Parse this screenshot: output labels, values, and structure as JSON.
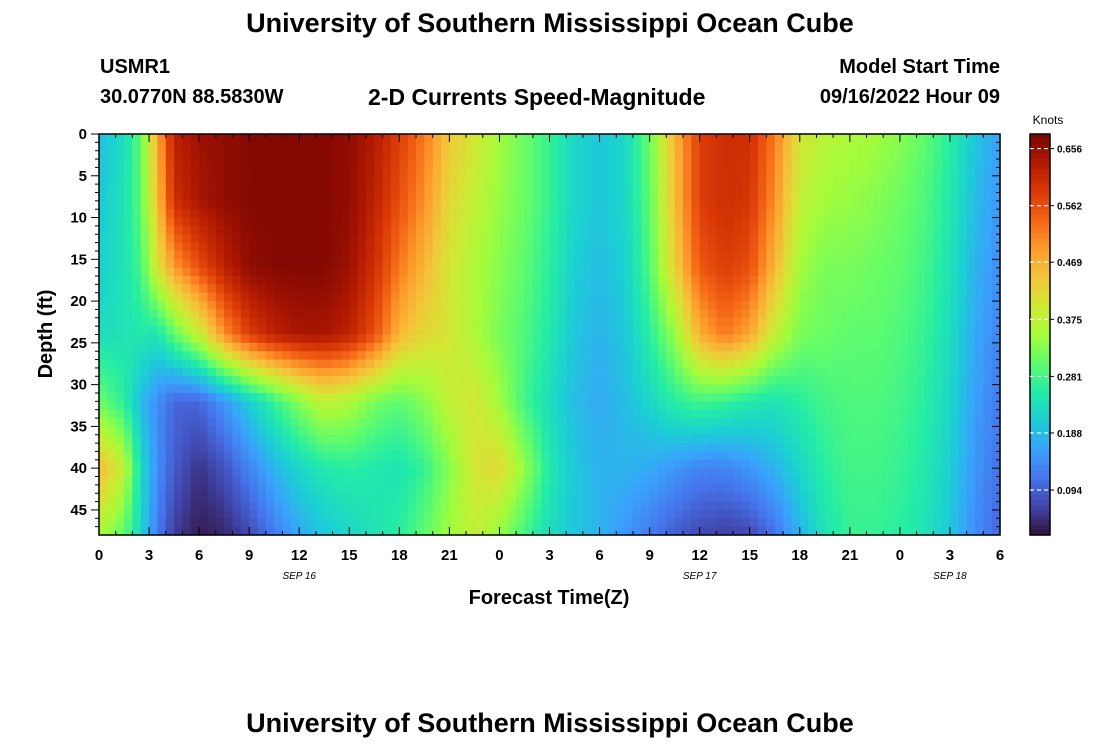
{
  "header": {
    "title": "University of Southern Mississippi Ocean Cube",
    "station_id": "USMR1",
    "coordinates": "30.0770N  88.5830W",
    "plot_title": "2-D Currents Speed-Magnitude",
    "model_start_label": "Model Start Time",
    "model_start_value": "09/16/2022 Hour 09"
  },
  "footer": {
    "title": "University of Southern Mississippi Ocean Cube"
  },
  "chart_data": {
    "type": "heatmap",
    "title": "2-D Currents Speed-Magnitude",
    "xlabel": "Forecast Time(Z)",
    "ylabel": "Depth (ft)",
    "x_ticks": [
      "0",
      "3",
      "6",
      "9",
      "12",
      "15",
      "18",
      "21",
      "0",
      "3",
      "6",
      "9",
      "12",
      "15",
      "18",
      "21",
      "0",
      "3",
      "6"
    ],
    "x_tick_hours": [
      0,
      3,
      6,
      9,
      12,
      15,
      18,
      21,
      24,
      27,
      30,
      33,
      36,
      39,
      42,
      45,
      48,
      51,
      54
    ],
    "x_range_hours": [
      0,
      54
    ],
    "date_labels": [
      {
        "label": "SEP 16",
        "hour": 12
      },
      {
        "label": "SEP 17",
        "hour": 36
      },
      {
        "label": "SEP 18",
        "hour": 51
      }
    ],
    "y_ticks": [
      0,
      5,
      10,
      15,
      20,
      25,
      30,
      35,
      40,
      45
    ],
    "y_range": [
      0,
      48
    ],
    "y_inverted": true,
    "colorbar": {
      "unit": "Knots",
      "ticks": [
        0.656,
        0.562,
        0.469,
        0.375,
        0.281,
        0.188,
        0.094
      ],
      "range": [
        0.02,
        0.68
      ]
    },
    "colormap": [
      "#30123b",
      "#4145ab",
      "#4675ed",
      "#39a2fc",
      "#1bcfd4",
      "#24eca6",
      "#61fc6c",
      "#a4fc3b",
      "#d1e834",
      "#f3c63a",
      "#fe9b2d",
      "#f36315",
      "#d93806",
      "#b11901",
      "#7a0403"
    ],
    "depths_ft": [
      0,
      8,
      16,
      24,
      32,
      40,
      48
    ],
    "times_hours": [
      0,
      1.5,
      2.5,
      3.5,
      4.5,
      6,
      7.5,
      9,
      10.5,
      12,
      13.5,
      15,
      16.5,
      18,
      19.5,
      21,
      22.5,
      24,
      25.5,
      27,
      28.5,
      30,
      31.5,
      33,
      34.5,
      36,
      37.5,
      39,
      40.5,
      42,
      43.5,
      45,
      46.5,
      48,
      49.5,
      51,
      52.5,
      54
    ],
    "values_knots": [
      [
        0.19,
        0.23,
        0.3,
        0.47,
        0.62,
        0.65,
        0.66,
        0.67,
        0.67,
        0.67,
        0.67,
        0.66,
        0.63,
        0.58,
        0.52,
        0.44,
        0.4,
        0.35,
        0.31,
        0.27,
        0.22,
        0.2,
        0.22,
        0.31,
        0.46,
        0.58,
        0.6,
        0.6,
        0.52,
        0.4,
        0.37,
        0.36,
        0.35,
        0.33,
        0.3,
        0.26,
        0.2,
        0.16
      ],
      [
        0.2,
        0.24,
        0.3,
        0.45,
        0.6,
        0.64,
        0.66,
        0.67,
        0.67,
        0.67,
        0.67,
        0.66,
        0.62,
        0.56,
        0.5,
        0.42,
        0.38,
        0.34,
        0.31,
        0.27,
        0.22,
        0.2,
        0.22,
        0.3,
        0.45,
        0.58,
        0.6,
        0.59,
        0.5,
        0.38,
        0.35,
        0.34,
        0.33,
        0.31,
        0.29,
        0.25,
        0.19,
        0.15
      ],
      [
        0.21,
        0.24,
        0.28,
        0.4,
        0.49,
        0.56,
        0.62,
        0.66,
        0.67,
        0.67,
        0.67,
        0.65,
        0.6,
        0.52,
        0.46,
        0.4,
        0.36,
        0.33,
        0.3,
        0.26,
        0.21,
        0.19,
        0.21,
        0.29,
        0.43,
        0.55,
        0.58,
        0.56,
        0.46,
        0.35,
        0.32,
        0.32,
        0.31,
        0.3,
        0.28,
        0.24,
        0.18,
        0.14
      ],
      [
        0.23,
        0.24,
        0.25,
        0.24,
        0.3,
        0.38,
        0.5,
        0.58,
        0.62,
        0.64,
        0.64,
        0.62,
        0.56,
        0.46,
        0.42,
        0.4,
        0.36,
        0.32,
        0.29,
        0.25,
        0.2,
        0.18,
        0.2,
        0.26,
        0.34,
        0.47,
        0.52,
        0.48,
        0.38,
        0.32,
        0.31,
        0.3,
        0.3,
        0.29,
        0.27,
        0.23,
        0.17,
        0.13
      ],
      [
        0.31,
        0.26,
        0.19,
        0.14,
        0.1,
        0.1,
        0.15,
        0.21,
        0.27,
        0.33,
        0.38,
        0.36,
        0.32,
        0.3,
        0.33,
        0.38,
        0.4,
        0.35,
        0.28,
        0.23,
        0.19,
        0.17,
        0.19,
        0.22,
        0.26,
        0.28,
        0.27,
        0.25,
        0.24,
        0.26,
        0.28,
        0.29,
        0.29,
        0.28,
        0.26,
        0.22,
        0.16,
        0.12
      ],
      [
        0.46,
        0.38,
        0.23,
        0.14,
        0.09,
        0.05,
        0.08,
        0.13,
        0.18,
        0.22,
        0.25,
        0.26,
        0.25,
        0.24,
        0.27,
        0.33,
        0.4,
        0.42,
        0.34,
        0.25,
        0.2,
        0.18,
        0.18,
        0.17,
        0.15,
        0.13,
        0.13,
        0.15,
        0.18,
        0.22,
        0.26,
        0.28,
        0.28,
        0.27,
        0.25,
        0.21,
        0.15,
        0.11
      ],
      [
        0.36,
        0.3,
        0.22,
        0.12,
        0.06,
        0.03,
        0.04,
        0.07,
        0.12,
        0.17,
        0.2,
        0.22,
        0.24,
        0.26,
        0.3,
        0.35,
        0.38,
        0.34,
        0.28,
        0.23,
        0.2,
        0.18,
        0.15,
        0.12,
        0.09,
        0.07,
        0.06,
        0.07,
        0.11,
        0.18,
        0.24,
        0.27,
        0.27,
        0.26,
        0.24,
        0.2,
        0.14,
        0.1
      ]
    ]
  }
}
